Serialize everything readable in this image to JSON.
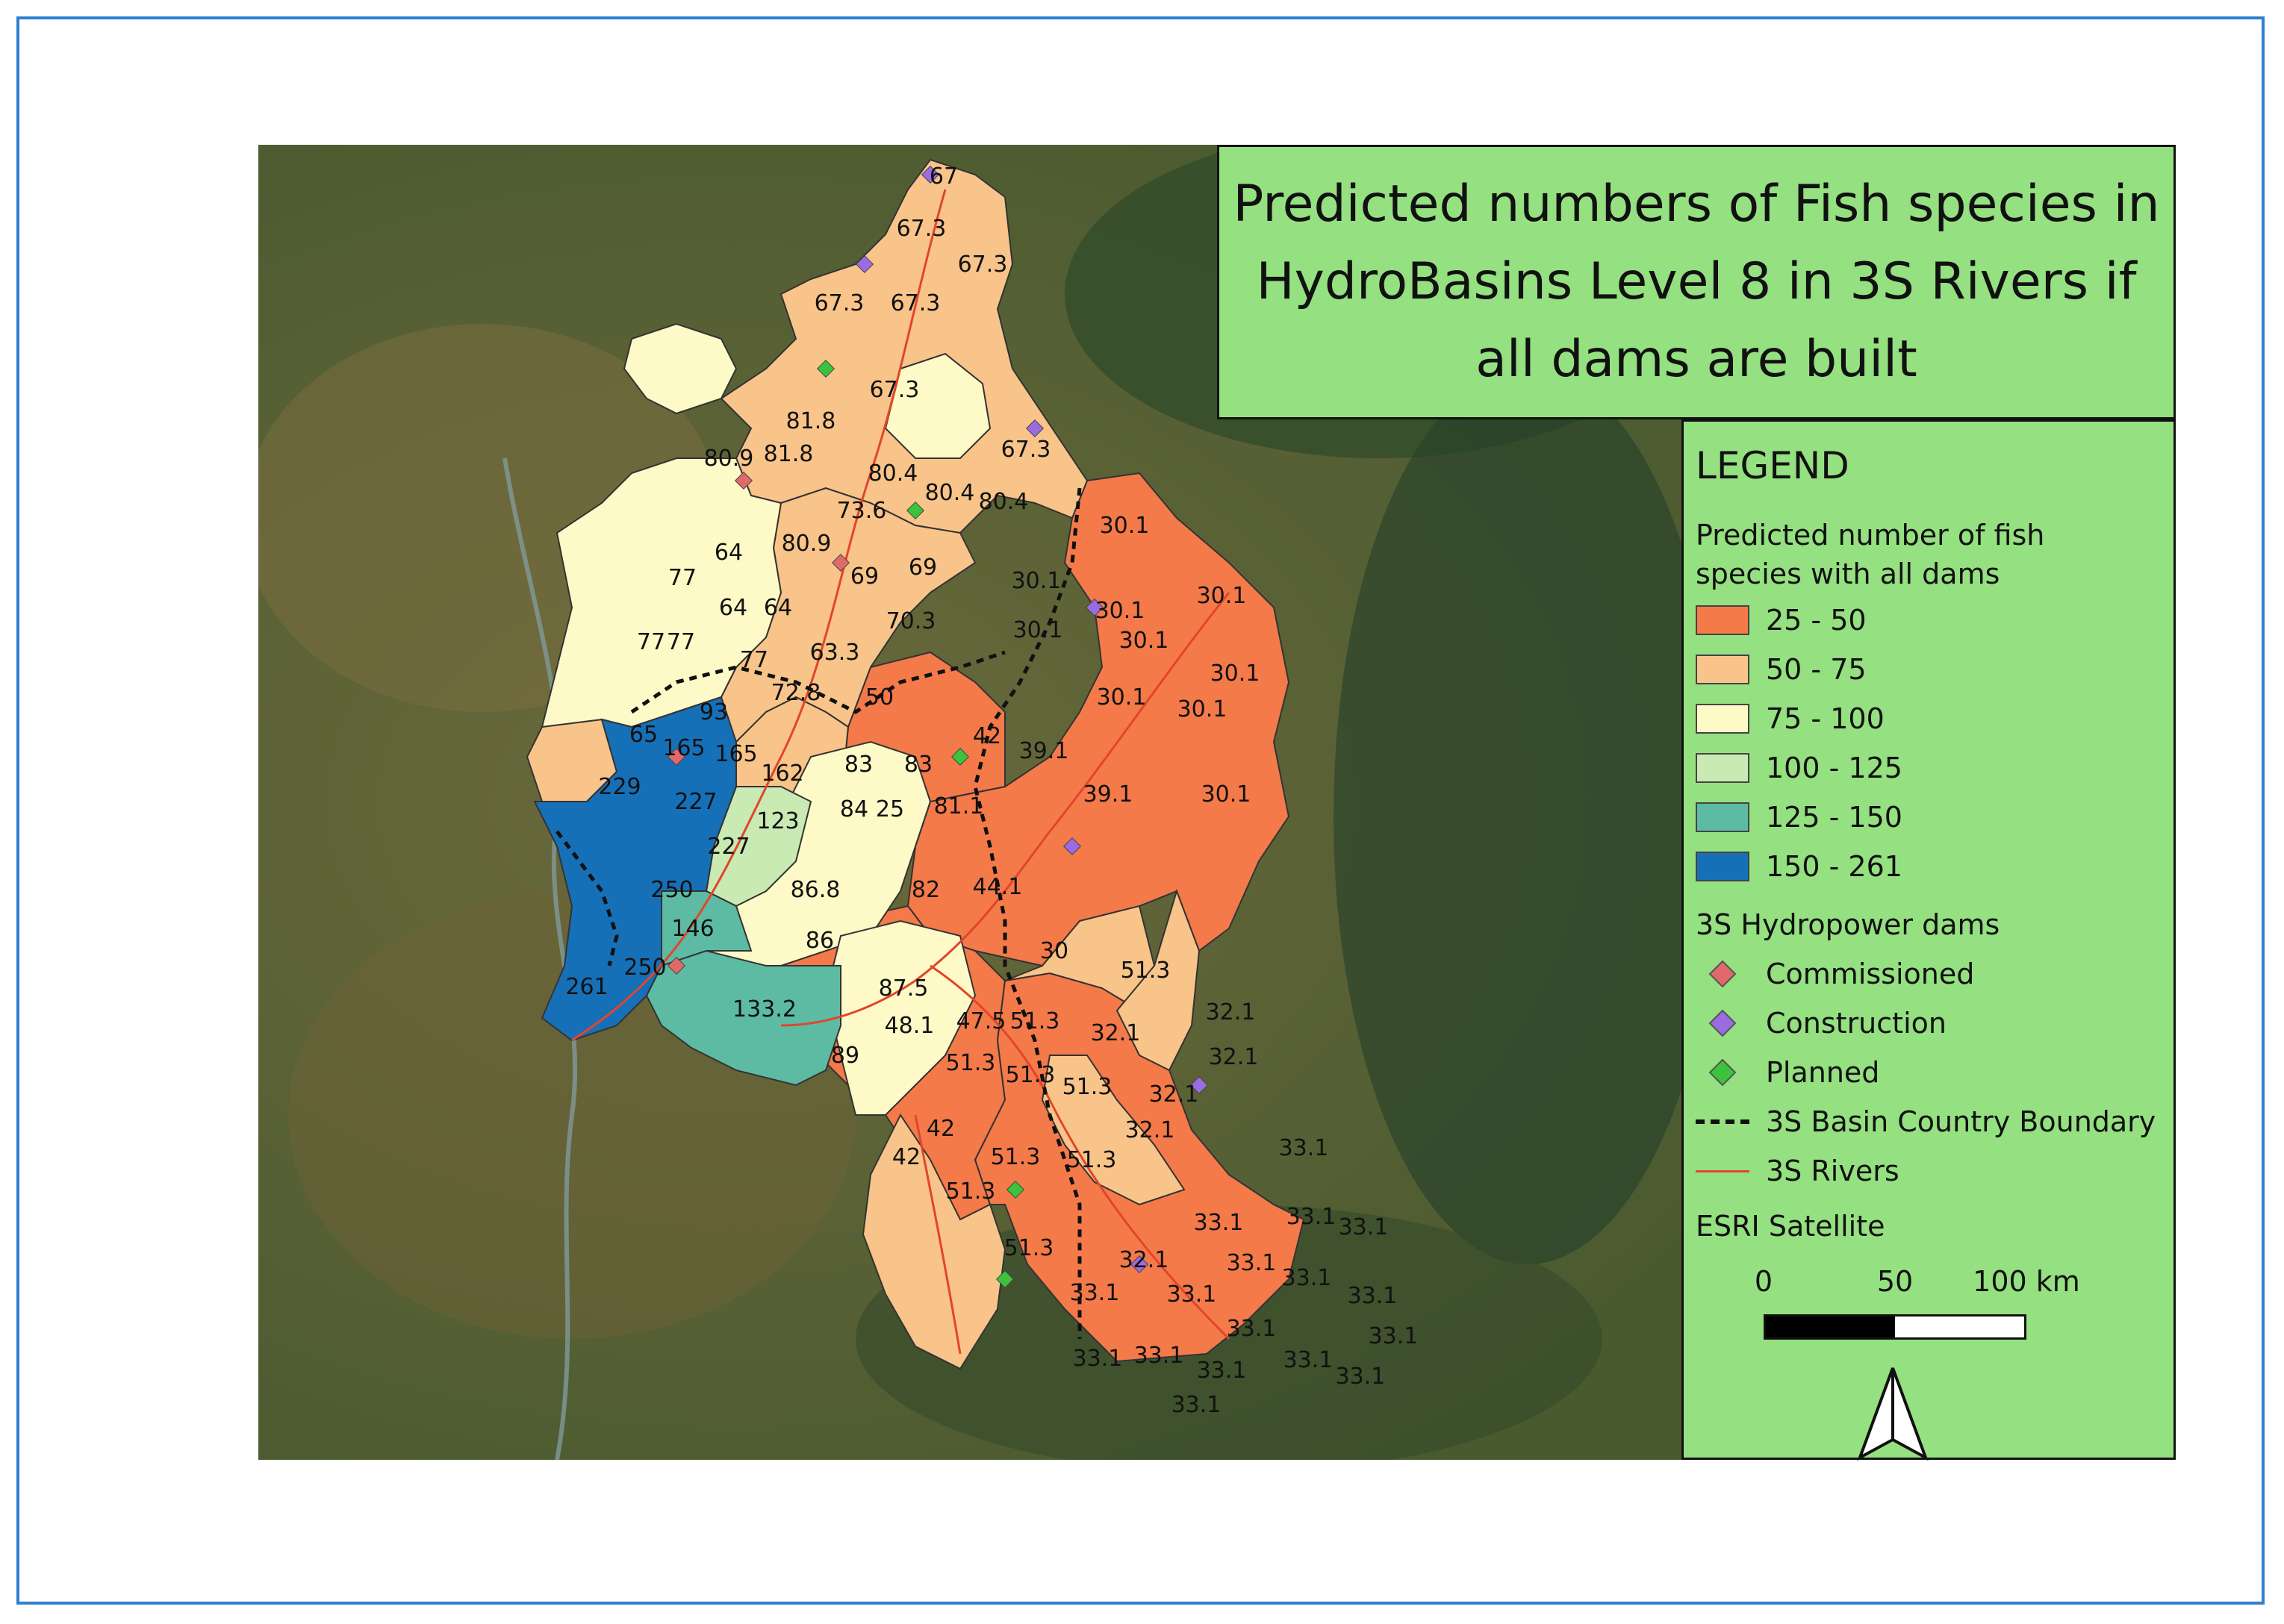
{
  "title": "Predicted numbers of Fish species in HydroBasins Level 8 in 3S Rivers if all dams are built",
  "legend": {
    "heading": "LEGEND",
    "choropleth_title": "Predicted number of fish species with all dams",
    "classes": [
      {
        "label": "25 - 50",
        "color": "#f47a4a"
      },
      {
        "label": "50 - 75",
        "color": "#f8c48a"
      },
      {
        "label": "75 - 100",
        "color": "#fdfac7"
      },
      {
        "label": "100 - 125",
        "color": "#c9eab3"
      },
      {
        "label": "125 - 150",
        "color": "#5dbba4"
      },
      {
        "label": "150 - 261",
        "color": "#1670b8"
      }
    ],
    "dams_title": "3S Hydropower dams",
    "dams": [
      {
        "label": "Commissioned",
        "color": "#e06a6a"
      },
      {
        "label": "Construction",
        "color": "#9b6be0"
      },
      {
        "label": "Planned",
        "color": "#3bc43b"
      }
    ],
    "boundary_label": "3S Basin Country Boundary",
    "rivers_label": "3S Rivers",
    "basemap_label": "ESRI Satellite"
  },
  "scale_bar": {
    "labels": [
      "0",
      "50",
      "100 km"
    ]
  },
  "basin_labels": [
    "67",
    "67.3",
    "67.3",
    "67.3",
    "67.3",
    "67.3",
    "67.3",
    "81.8",
    "80.9",
    "81.8",
    "80.4",
    "80.4",
    "80.4",
    "73.6",
    "80.9",
    "64",
    "77",
    "64",
    "64",
    "69",
    "69",
    "70.3",
    "30.1",
    "30.1",
    "30.1",
    "30.1",
    "30.1",
    "30.1",
    "30.1",
    "30.1",
    "30.1",
    "30.1",
    "63.3",
    "72.8",
    "50",
    "77",
    "77",
    "77",
    "93",
    "65",
    "165",
    "165",
    "162",
    "229",
    "227",
    "227",
    "123",
    "83",
    "83",
    "84",
    "25",
    "81.1",
    "42",
    "39.1",
    "39.1",
    "250",
    "86.8",
    "82",
    "44.1",
    "146",
    "86",
    "30",
    "51.3",
    "250",
    "261",
    "133.2",
    "87.5",
    "48.1",
    "47.5",
    "51.3",
    "32.1",
    "32.1",
    "89",
    "51.3",
    "51.3",
    "51.3",
    "32.1",
    "32.1",
    "42",
    "42",
    "51.3",
    "51.3",
    "51.3",
    "32.1",
    "33.1",
    "51.3",
    "33.1",
    "32.1",
    "33.1",
    "33.1",
    "33.1",
    "33.1",
    "33.1",
    "33.1",
    "33.1",
    "33.1",
    "33.1",
    "33.1",
    "33.1",
    "33.1",
    "33.1",
    "33.1",
    "33.1"
  ]
}
